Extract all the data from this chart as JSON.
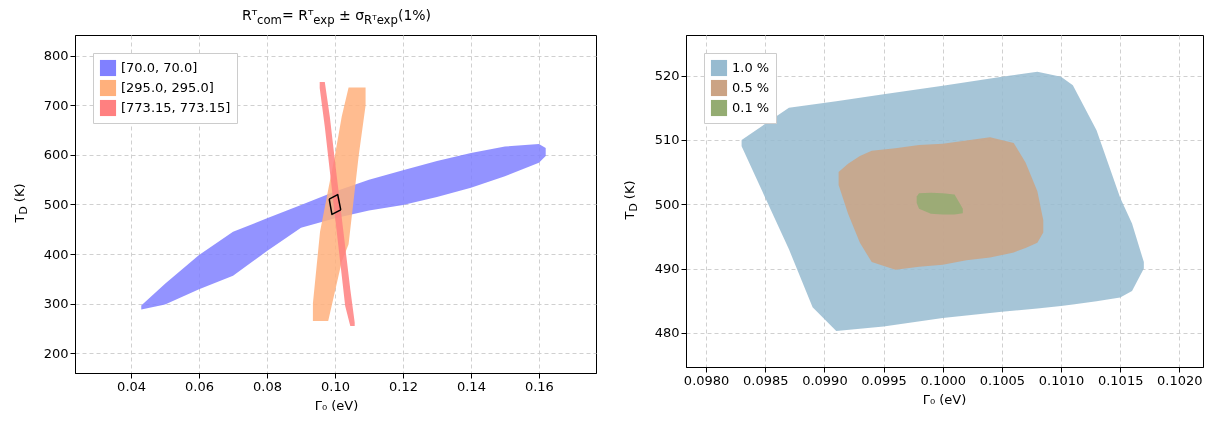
{
  "chart_data": [
    {
      "type": "area",
      "title": "Rᵀ$_{com}$= Rᵀ$_{exp}$ ± σ$_{Rᵀexp}$(1%)",
      "xlabel": "Γ₀ (eV)",
      "ylabel": "T$_{D}$ (K)",
      "xlim": [
        0.0235,
        0.1768
      ],
      "ylim": [
        160,
        842
      ],
      "xticks": [
        0.04,
        0.06,
        0.08,
        {
          "value": 0.1,
          "label": "0.10"
        },
        0.12,
        0.14,
        0.16
      ],
      "yticks": [
        200,
        300,
        400,
        500,
        600,
        700,
        800
      ],
      "grid": true,
      "legend": "top left",
      "series": [
        {
          "name": "[70.0, 70.0]",
          "color": "#8080ff",
          "x": [
            0.043,
            0.05,
            0.06,
            0.07,
            0.08,
            0.09,
            0.1,
            0.11,
            0.12,
            0.13,
            0.14,
            0.15,
            0.16,
            0.162
          ],
          "values": [
            null,
            null,
            null,
            null,
            null,
            null,
            null,
            null,
            null,
            null,
            null,
            null,
            null,
            null
          ],
          "lower": [
            288,
            298,
            329,
            356,
            406,
            453,
            472,
            488,
            499,
            515,
            534,
            557,
            584,
            598
          ],
          "upper": [
            296,
            340,
            398,
            445,
            472,
            499,
            526,
            550,
            569,
            588,
            604,
            617,
            622,
            614
          ]
        },
        {
          "name": "[295.0, 295.0]",
          "color": "#ffb07c",
          "x": [
            0.0935,
            0.0956,
            0.098,
            0.1,
            0.102,
            0.104,
            0.107,
            0.109
          ],
          "values": [
            null,
            null,
            null,
            null,
            null,
            null,
            null,
            null
          ],
          "lower": [
            265,
            265,
            265,
            325,
            385,
            420,
            600,
            700
          ],
          "upper": [
            300,
            445,
            530,
            600,
            678,
            736,
            736,
            736
          ]
        },
        {
          "name": "[773.15, 773.15]",
          "color": "#ff8080",
          "x": [
            0.0955,
            0.097,
            0.0985,
            0.1,
            0.1015,
            0.103,
            0.1045,
            0.1058
          ],
          "values": [
            null,
            null,
            null,
            null,
            null,
            null,
            null,
            null
          ],
          "lower": [
            735,
            657,
            566,
            476,
            386,
            295,
            255,
            255
          ],
          "upper": [
            747,
            747,
            676,
            587,
            501,
            415,
            329,
            262
          ]
        },
        {
          "type": "line",
          "color": "#000000",
          "x": [
            0.0983,
            0.1008,
            0.1017
          ],
          "values": [
            511,
            520,
            489
          ]
        },
        {
          "type": "line",
          "color": "#000000",
          "x": [
            0.0983,
            0.0991,
            0.1017
          ],
          "values": [
            511,
            480,
            489
          ]
        }
      ]
    },
    {
      "type": "area",
      "xlabel": "Γ₀ (eV)",
      "ylabel": "T$_{D}$ (K)",
      "xlim": [
        0.09783,
        0.1022
      ],
      "ylim": [
        474.7,
        526.3
      ],
      "xticks": [
        {
          "value": 0.098,
          "label": "0.0980"
        },
        {
          "value": 0.0985,
          "label": "0.0985"
        },
        {
          "value": 0.099,
          "label": "0.0990"
        },
        {
          "value": 0.0995,
          "label": "0.0995"
        },
        {
          "value": 0.1,
          "label": "0.1000"
        },
        {
          "value": 0.1005,
          "label": "0.1005"
        },
        {
          "value": 0.101,
          "label": "0.1010"
        },
        {
          "value": 0.1015,
          "label": "0.1015"
        },
        {
          "value": 0.102,
          "label": "0.1020"
        }
      ],
      "yticks": [
        480,
        490,
        500,
        510,
        520
      ],
      "grid": true,
      "legend": "top left",
      "series": [
        {
          "name": "1.0 %",
          "color": "#97bbd0",
          "x": [
            0.0983,
            0.0987,
            0.0989,
            0.0991,
            0.0995,
            0.1,
            0.1005,
            0.1008,
            0.101,
            0.1011,
            0.1013,
            0.1015,
            0.1016,
            0.1017
          ],
          "values": [
            null,
            null,
            null,
            null,
            null,
            null,
            null,
            null,
            null,
            null,
            null,
            null,
            null,
            null
          ],
          "lower": [
            509,
            493,
            484,
            480.3,
            481,
            482.3,
            483.3,
            483.8,
            484.2,
            484.4,
            484.9,
            485.5,
            486.5,
            490
          ],
          "upper": [
            510,
            515,
            515.5,
            516,
            517.1,
            518.4,
            519.8,
            520.6,
            519.8,
            518.5,
            511.5,
            501,
            497,
            491
          ]
        },
        {
          "name": "0.5 %",
          "color": "#cba384",
          "x": [
            0.09912,
            0.0992,
            0.0993,
            0.0994,
            0.0996,
            0.0998,
            0.1,
            0.1002,
            0.1004,
            0.1006,
            0.1007,
            0.1008,
            0.10085
          ],
          "values": [
            null,
            null,
            null,
            null,
            null,
            null,
            null,
            null,
            null,
            null,
            null,
            null,
            null
          ],
          "lower": [
            503,
            498.5,
            494,
            491,
            489.8,
            490.3,
            490.6,
            491.3,
            491.7,
            492.5,
            493.2,
            494,
            495.6
          ],
          "upper": [
            505,
            506.3,
            507.5,
            508.3,
            508.7,
            509.2,
            509.4,
            509.9,
            510.4,
            509.5,
            506.5,
            502,
            497.5
          ]
        },
        {
          "name": "0.1 %",
          "color": "#94ac72",
          "x": [
            0.09978,
            0.0998,
            0.0999,
            0.1,
            0.1001,
            0.10017
          ],
          "values": [
            null,
            null,
            null,
            null,
            null,
            null
          ],
          "lower": [
            500.2,
            499.3,
            498.5,
            498.4,
            498.4,
            498.6
          ],
          "upper": [
            501.2,
            501.7,
            501.8,
            501.7,
            501.5,
            499.3
          ]
        }
      ]
    }
  ]
}
